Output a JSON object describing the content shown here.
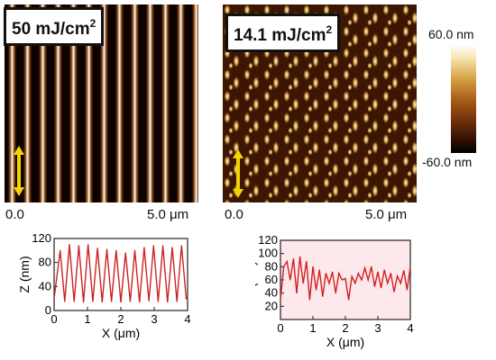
{
  "left_panel": {
    "label_value": "50 mJ/cm",
    "label_sup": "2",
    "scale_start": "0.0",
    "scale_end": "5.0 μm"
  },
  "right_panel": {
    "label_value": "14.1 mJ/cm",
    "label_sup": "2",
    "scale_start": "0.0",
    "scale_end": "5.0 μm"
  },
  "colorbar": {
    "max_label": "60.0 nm",
    "min_label": "-60.0 nm"
  },
  "chart_data": [
    {
      "type": "line",
      "title": "",
      "xlabel": "X (μm)",
      "ylabel": "Z (nm)",
      "xlim": [
        0,
        4
      ],
      "ylim": [
        0,
        120
      ],
      "xticks": [
        "0",
        "1",
        "2",
        "3",
        "4"
      ],
      "yticks": [
        "0",
        "40",
        "80",
        "120"
      ],
      "series": [
        {
          "x": [
            0,
            0.18,
            0.32,
            0.46,
            0.6,
            0.74,
            0.88,
            1.02,
            1.16,
            1.3,
            1.44,
            1.58,
            1.72,
            1.86,
            2.0,
            2.14,
            2.28,
            2.42,
            2.56,
            2.7,
            2.84,
            2.98,
            3.12,
            3.26,
            3.4,
            3.54,
            3.68,
            3.82,
            3.96,
            4.0
          ],
          "y": [
            20,
            100,
            15,
            110,
            15,
            108,
            14,
            110,
            15,
            104,
            14,
            102,
            15,
            100,
            14,
            96,
            15,
            100,
            14,
            105,
            16,
            108,
            15,
            108,
            14,
            105,
            15,
            108,
            20,
            22
          ]
        }
      ],
      "color": "#cc2222"
    },
    {
      "type": "line",
      "title": "",
      "xlabel": "X (μm)",
      "ylabel": "Z (nm)",
      "xlim": [
        0,
        4
      ],
      "ylim": [
        0,
        120
      ],
      "xticks": [
        "0",
        "1",
        "2",
        "3",
        "4"
      ],
      "yticks": [
        "20",
        "40",
        "60",
        "80",
        "100",
        "120"
      ],
      "series": [
        {
          "x": [
            0,
            0.1,
            0.2,
            0.3,
            0.4,
            0.5,
            0.6,
            0.7,
            0.8,
            0.9,
            1.0,
            1.1,
            1.2,
            1.3,
            1.4,
            1.5,
            1.6,
            1.7,
            1.8,
            1.9,
            2.0,
            2.1,
            2.2,
            2.3,
            2.4,
            2.5,
            2.6,
            2.7,
            2.8,
            2.9,
            3.0,
            3.1,
            3.2,
            3.3,
            3.4,
            3.5,
            3.6,
            3.7,
            3.8,
            3.9,
            4.0
          ],
          "y": [
            30,
            80,
            88,
            60,
            92,
            40,
            95,
            55,
            88,
            30,
            80,
            45,
            75,
            35,
            70,
            55,
            72,
            40,
            70,
            60,
            62,
            30,
            65,
            55,
            70,
            60,
            78,
            60,
            80,
            50,
            72,
            48,
            75,
            55,
            70,
            42,
            66,
            55,
            74,
            45,
            80
          ]
        }
      ],
      "color": "#d12020"
    }
  ]
}
